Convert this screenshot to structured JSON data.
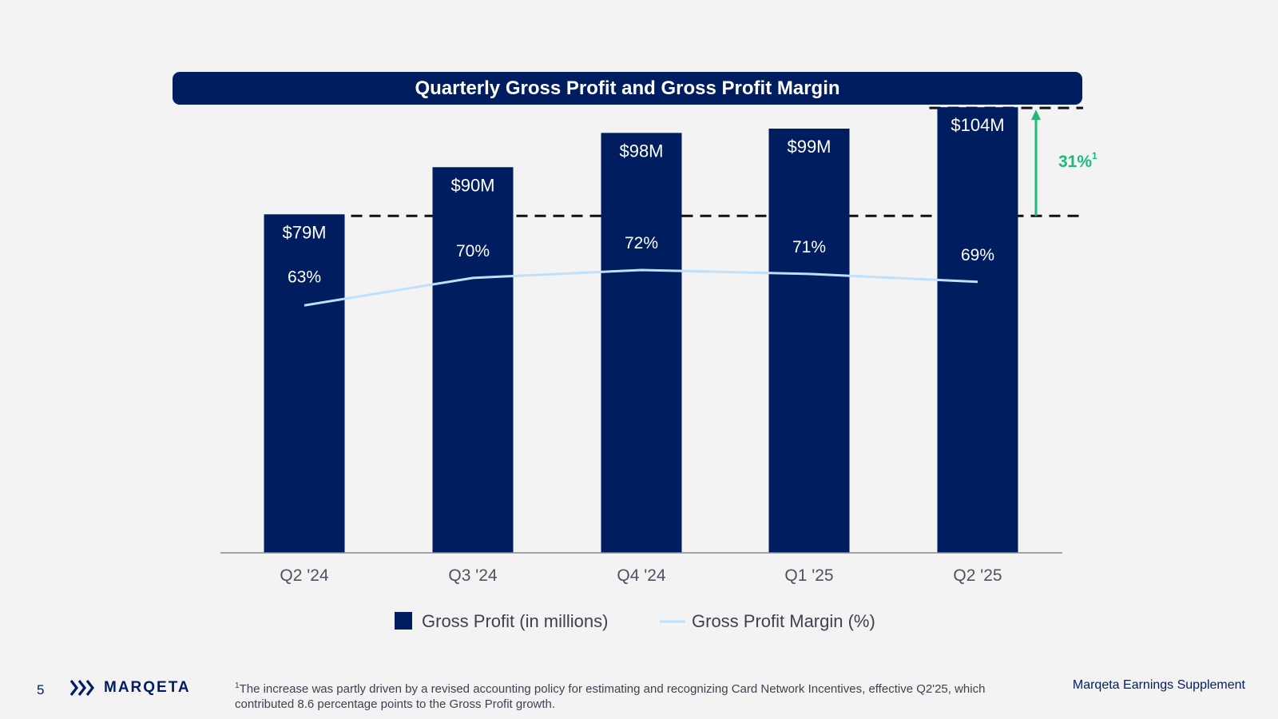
{
  "chart_data": {
    "type": "bar",
    "title": "Quarterly Gross Profit and Gross Profit Margin",
    "categories": [
      "Q2 '24",
      "Q3 '24",
      "Q4 '24",
      "Q1 '25",
      "Q2 '25"
    ],
    "series": [
      {
        "name": "Gross Profit (in millions)",
        "kind": "bar",
        "values": [
          79,
          90,
          98,
          99,
          104
        ],
        "labels": [
          "$79M",
          "$90M",
          "$98M",
          "$99M",
          "$104M"
        ]
      },
      {
        "name": "Gross Profit Margin (%)",
        "kind": "line",
        "values": [
          63,
          70,
          72,
          71,
          69
        ],
        "labels": [
          "63%",
          "70%",
          "72%",
          "71%",
          "69%"
        ]
      }
    ],
    "ylim": [
      0,
      110
    ],
    "margin_ylim": [
      0,
      120
    ],
    "annotation": {
      "text": "31%",
      "footnote_marker": "1",
      "from_category": "Q2 '24",
      "to_category": "Q2 '25"
    },
    "legend": [
      "Gross Profit (in millions)",
      "Gross Profit Margin (%)"
    ],
    "colors": {
      "bar": "#001e5f",
      "line": "#bfe0fb",
      "growth": "#1fb97a"
    }
  },
  "footer": {
    "page_number": "5",
    "logo_text": "MARQETA",
    "footnote_marker": "1",
    "footnote_text": "The increase was partly driven by a revised accounting policy for estimating and recognizing Card Network Incentives, effective Q2'25, which contributed 8.6 percentage points to the Gross Profit growth.",
    "supplement": "Marqeta Earnings Supplement"
  }
}
